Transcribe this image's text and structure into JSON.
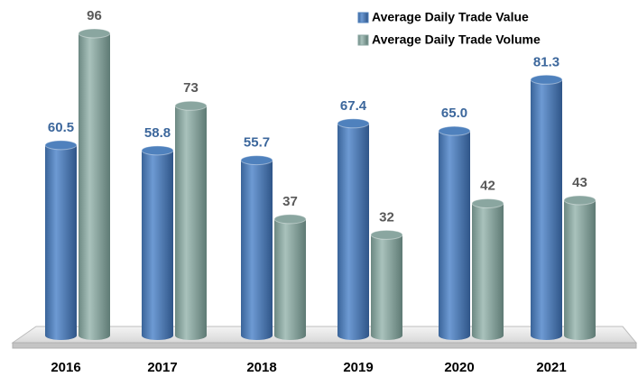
{
  "chart_data": {
    "type": "bar",
    "categories": [
      "2016",
      "2017",
      "2018",
      "2019",
      "2020",
      "2021"
    ],
    "series": [
      {
        "name": "Average Daily Trade Value",
        "color": "#4f81bd",
        "label_color": "#3c679c",
        "values": [
          60.5,
          58.8,
          55.7,
          67.4,
          65.0,
          81.3
        ],
        "value_labels": [
          "60.5",
          "58.8",
          "55.7",
          "67.4",
          "65.0",
          "81.3"
        ]
      },
      {
        "name": "Average Daily Trade Volume",
        "color": "#8aa6a0",
        "label_color": "#595959",
        "values": [
          96,
          73,
          37,
          32,
          42,
          43
        ]
      }
    ],
    "legend": "top-right"
  }
}
